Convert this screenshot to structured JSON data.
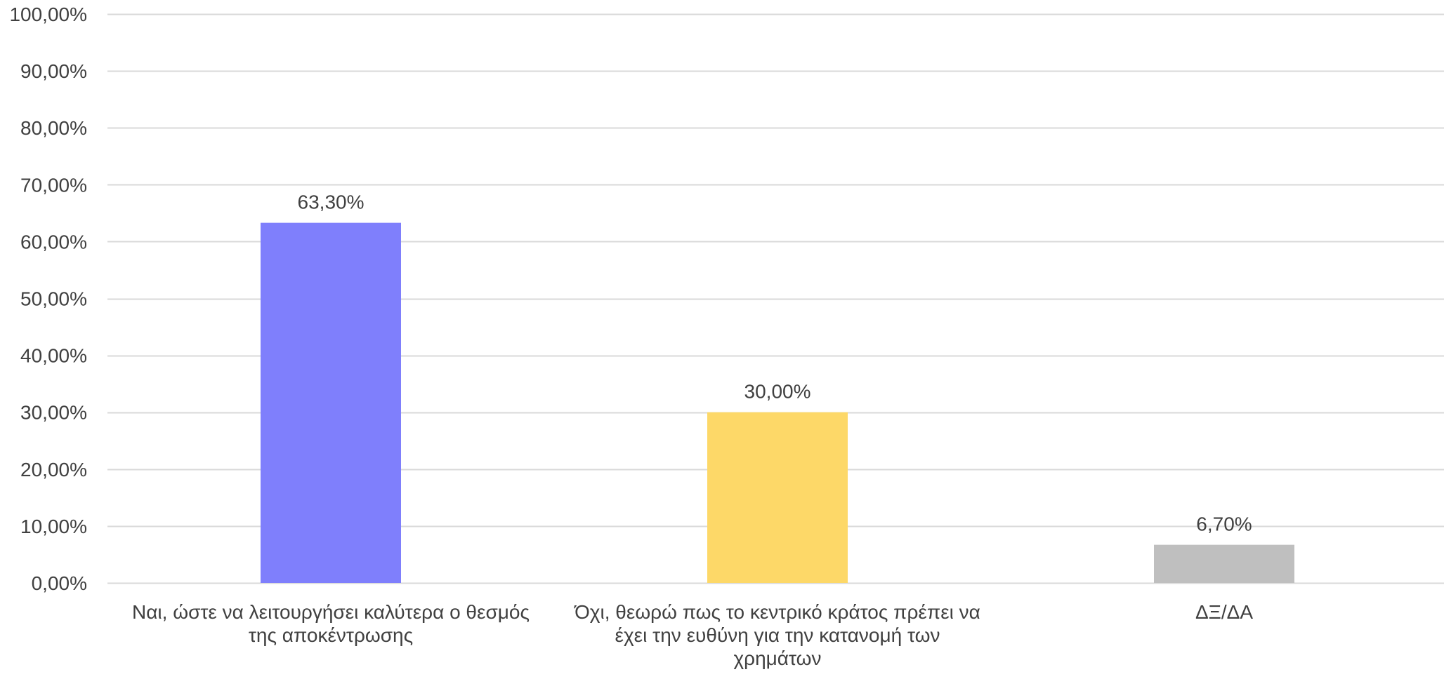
{
  "chart_data": {
    "type": "bar",
    "categories": [
      "Ναι, ώστε να λειτουργήσει καλύτερα ο θεσμός της αποκέντρωσης",
      "Όχι, θεωρώ πως το κεντρικό κράτος πρέπει να έχει την ευθύνη για την κατανομή των χρημάτων",
      "ΔΞ/ΔΑ"
    ],
    "category_lines": [
      [
        "Ναι, ώστε να λειτουργήσει καλύτερα ο θεσμός",
        "της αποκέντρωσης"
      ],
      [
        "Όχι, θεωρώ πως το κεντρικό κράτος πρέπει να",
        "έχει την ευθύνη για την κατανομή των",
        "χρημάτων"
      ],
      [
        "ΔΞ/ΔΑ"
      ]
    ],
    "values": [
      63.3,
      30.0,
      6.7
    ],
    "data_labels": [
      "63,30%",
      "30,00%",
      "6,70%"
    ],
    "colors": [
      "#7f7ffc",
      "#fdd868",
      "#bfbfbf"
    ],
    "ylim": [
      0,
      100
    ],
    "y_ticks": [
      0,
      10,
      20,
      30,
      40,
      50,
      60,
      70,
      80,
      90,
      100
    ],
    "y_tick_labels": [
      "0,00%",
      "10,00%",
      "20,00%",
      "30,00%",
      "40,00%",
      "50,00%",
      "60,00%",
      "70,00%",
      "80,00%",
      "90,00%",
      "100,00%"
    ],
    "grid": true,
    "gridline_color": "#d9d9d9",
    "title": "",
    "xlabel": "",
    "ylabel": ""
  }
}
